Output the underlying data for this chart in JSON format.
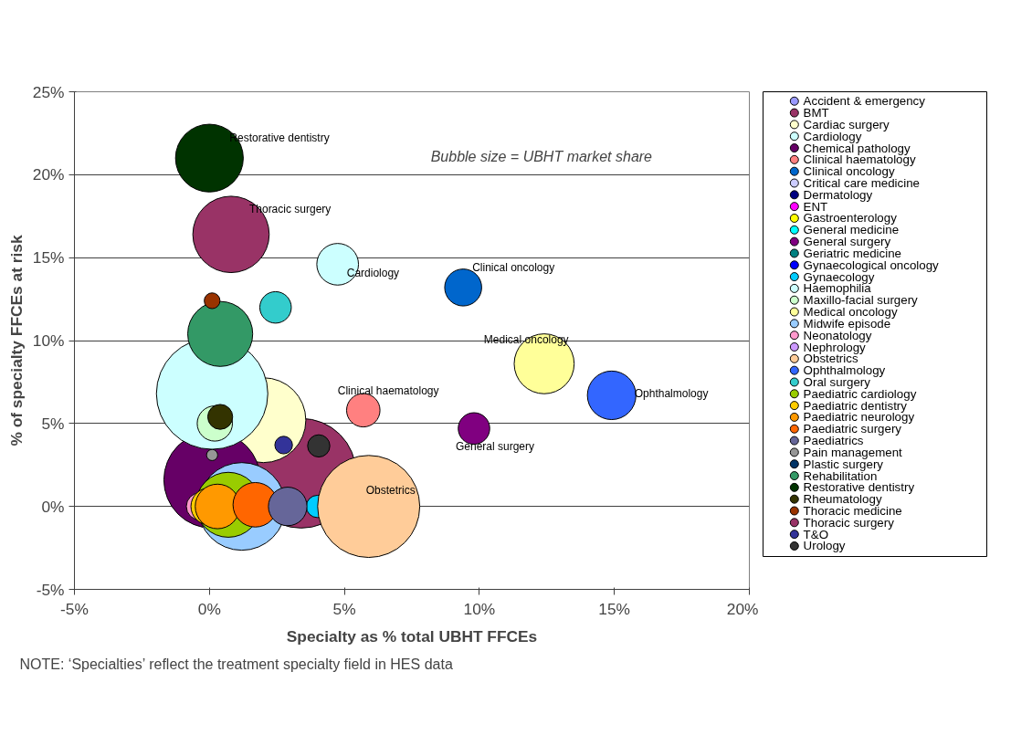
{
  "chart_data": {
    "type": "bubble",
    "xlabel": "Specialty as % total UBHT FFCEs",
    "ylabel": "% of specialty FFCEs at risk",
    "xlim": [
      -5,
      20
    ],
    "ylim": [
      -5,
      25
    ],
    "xticks": [
      {
        "value": -5,
        "label": "-5%"
      },
      {
        "value": 0,
        "label": "0%"
      },
      {
        "value": 5,
        "label": "5%"
      },
      {
        "value": 10,
        "label": "10%"
      },
      {
        "value": 15,
        "label": "15%"
      },
      {
        "value": 20,
        "label": "20%"
      }
    ],
    "yticks": [
      {
        "value": -5,
        "label": "-5%"
      },
      {
        "value": 0,
        "label": "0%"
      },
      {
        "value": 5,
        "label": "5%"
      },
      {
        "value": 10,
        "label": "10%"
      },
      {
        "value": 15,
        "label": "15%"
      },
      {
        "value": 20,
        "label": "20%"
      },
      {
        "value": 25,
        "label": "25%"
      }
    ],
    "grid": "y",
    "legend": "right",
    "series": [
      {
        "name": "Accident & emergency",
        "color": "#9999ff",
        "x": [
          null
        ],
        "values": [
          null
        ],
        "sizes": [
          null
        ]
      },
      {
        "name": "BMT",
        "color": "#993366",
        "x": [
          3.4
        ],
        "values": [
          2.0
        ],
        "sizes": [
          0.97
        ]
      },
      {
        "name": "Cardiac surgery",
        "color": "#ffffcc",
        "x": [
          2.0
        ],
        "values": [
          5.2
        ],
        "sizes": [
          0.58
        ]
      },
      {
        "name": "Cardiology",
        "color": "#ccffff",
        "x": [
          4.75
        ],
        "values": [
          14.6
        ],
        "sizes": [
          0.14
        ]
      },
      {
        "name": "Chemical pathology",
        "color": "#660066",
        "x": [
          0.1
        ],
        "values": [
          1.6
        ],
        "sizes": [
          0.75
        ]
      },
      {
        "name": "Clinical haematology",
        "color": "#ff8080",
        "x": [
          5.7
        ],
        "values": [
          5.8
        ],
        "sizes": [
          0.09
        ]
      },
      {
        "name": "Clinical oncology",
        "color": "#0066cc",
        "x": [
          9.4
        ],
        "values": [
          13.2
        ],
        "sizes": [
          0.11
        ]
      },
      {
        "name": "Critical care medicine",
        "color": "#ccccff",
        "x": [
          null
        ],
        "values": [
          null
        ],
        "sizes": [
          null
        ]
      },
      {
        "name": "Dermatology",
        "color": "#000080",
        "x": [
          null
        ],
        "values": [
          null
        ],
        "sizes": [
          null
        ]
      },
      {
        "name": "ENT",
        "color": "#ff00ff",
        "x": [
          null
        ],
        "values": [
          null
        ],
        "sizes": [
          null
        ]
      },
      {
        "name": "Gastroenterology",
        "color": "#ffff00",
        "x": [
          null
        ],
        "values": [
          null
        ],
        "sizes": [
          null
        ]
      },
      {
        "name": "General medicine",
        "color": "#00ffff",
        "x": [
          null
        ],
        "values": [
          null
        ],
        "sizes": [
          null
        ]
      },
      {
        "name": "General surgery",
        "color": "#800080",
        "x": [
          9.8
        ],
        "values": [
          4.7
        ],
        "sizes": [
          0.08
        ]
      },
      {
        "name": "Geriatric medicine",
        "color": "#008080",
        "x": [
          null
        ],
        "values": [
          null
        ],
        "sizes": [
          null
        ]
      },
      {
        "name": "Gynaecological oncology",
        "color": "#0000ff",
        "x": [
          null
        ],
        "values": [
          null
        ],
        "sizes": [
          null
        ]
      },
      {
        "name": "Gynaecology",
        "color": "#00ccff",
        "x": [
          4.0
        ],
        "values": [
          0.0
        ],
        "sizes": [
          0.04
        ]
      },
      {
        "name": "Haemophilia",
        "color": "#ccffff",
        "x": [
          0.1
        ],
        "values": [
          6.8
        ],
        "sizes": [
          1
        ]
      },
      {
        "name": "Maxillo-facial surgery",
        "color": "#ccffcc",
        "x": [
          0.2
        ],
        "values": [
          5.0
        ],
        "sizes": [
          0.1
        ]
      },
      {
        "name": "Medical oncology",
        "color": "#ffff99",
        "x": [
          12.4
        ],
        "values": [
          8.6
        ],
        "sizes": [
          0.29
        ]
      },
      {
        "name": "Midwife episode",
        "color": "#99ccff",
        "x": [
          1.2
        ],
        "values": [
          0.0
        ],
        "sizes": [
          0.62
        ]
      },
      {
        "name": "Neonatology",
        "color": "#ff99cc",
        "x": [
          -0.35
        ],
        "values": [
          0.0
        ],
        "sizes": [
          0.06
        ]
      },
      {
        "name": "Nephrology",
        "color": "#cc99ff",
        "x": [
          null
        ],
        "values": [
          null
        ],
        "sizes": [
          null
        ]
      },
      {
        "name": "Obstetrics",
        "color": "#ffcc99",
        "x": [
          5.9
        ],
        "values": [
          0.0
        ],
        "sizes": [
          0.84
        ]
      },
      {
        "name": "Ophthalmology",
        "color": "#3366ff",
        "x": [
          14.9
        ],
        "values": [
          6.7
        ],
        "sizes": [
          0.19
        ]
      },
      {
        "name": "Oral surgery",
        "color": "#33cccc",
        "x": [
          2.45
        ],
        "values": [
          12.0
        ],
        "sizes": [
          0.08
        ]
      },
      {
        "name": "Paediatric cardiology",
        "color": "#99cc00",
        "x": [
          0.7
        ],
        "values": [
          0.1
        ],
        "sizes": [
          0.34
        ]
      },
      {
        "name": "Paediatric dentistry",
        "color": "#ffcc00",
        "x": [
          0.0
        ],
        "values": [
          0.0
        ],
        "sizes": [
          0.11
        ]
      },
      {
        "name": "Paediatric neurology",
        "color": "#ff9900",
        "x": [
          0.3
        ],
        "values": [
          0.0
        ],
        "sizes": [
          0.16
        ]
      },
      {
        "name": "Paediatric surgery",
        "color": "#ff6600",
        "x": [
          1.7
        ],
        "values": [
          0.1
        ],
        "sizes": [
          0.16
        ]
      },
      {
        "name": "Paediatrics",
        "color": "#666699",
        "x": [
          2.9
        ],
        "values": [
          0.0
        ],
        "sizes": [
          0.12
        ]
      },
      {
        "name": "Pain management",
        "color": "#969696",
        "x": [
          0.1
        ],
        "values": [
          3.1
        ],
        "sizes": [
          0.01
        ]
      },
      {
        "name": "Plastic surgery",
        "color": "#003366",
        "x": [
          null
        ],
        "values": [
          null
        ],
        "sizes": [
          null
        ]
      },
      {
        "name": "Rehabilitation",
        "color": "#339966",
        "x": [
          0.4
        ],
        "values": [
          10.4
        ],
        "sizes": [
          0.34
        ]
      },
      {
        "name": "Restorative dentistry",
        "color": "#003300",
        "x": [
          0.0
        ],
        "values": [
          21.0
        ],
        "sizes": [
          0.37
        ]
      },
      {
        "name": "Rheumatology",
        "color": "#333300",
        "x": [
          0.4
        ],
        "values": [
          5.4
        ],
        "sizes": [
          0.05
        ]
      },
      {
        "name": "Thoracic medicine",
        "color": "#993300",
        "x": [
          0.1
        ],
        "values": [
          12.4
        ],
        "sizes": [
          0.02
        ]
      },
      {
        "name": "Thoracic surgery",
        "color": "#993366",
        "x": [
          0.8
        ],
        "values": [
          16.4
        ],
        "sizes": [
          0.47
        ]
      },
      {
        "name": "T&O",
        "color": "#333399",
        "x": [
          2.75
        ],
        "values": [
          3.7
        ],
        "sizes": [
          0.025
        ]
      },
      {
        "name": "Urology",
        "color": "#333333",
        "x": [
          4.05
        ],
        "values": [
          3.65
        ],
        "sizes": [
          0.04
        ]
      }
    ],
    "annotations": [
      "Bubble size = UBHT market share",
      "NOTE: ‘Specialties’ reflect the treatment specialty field in HES data",
      {
        "text": "Restorative dentistry",
        "x": 0.0,
        "y": 21.0
      },
      {
        "text": "Thoracic surgery",
        "x": 0.8,
        "y": 16.4
      },
      {
        "text": "Cardiology",
        "x": 4.75,
        "y": 14.6
      },
      {
        "text": "Clinical oncology",
        "x": 9.4,
        "y": 13.2
      },
      {
        "text": "Medical oncology",
        "x": 12.4,
        "y": 8.6
      },
      {
        "text": "Clinical haematology",
        "x": 5.7,
        "y": 5.8
      },
      {
        "text": "Ophthalmology",
        "x": 14.9,
        "y": 6.7
      },
      {
        "text": "General surgery",
        "x": 9.8,
        "y": 4.7
      },
      {
        "text": "Obstetrics",
        "x": 5.9,
        "y": 0.0
      }
    ]
  }
}
